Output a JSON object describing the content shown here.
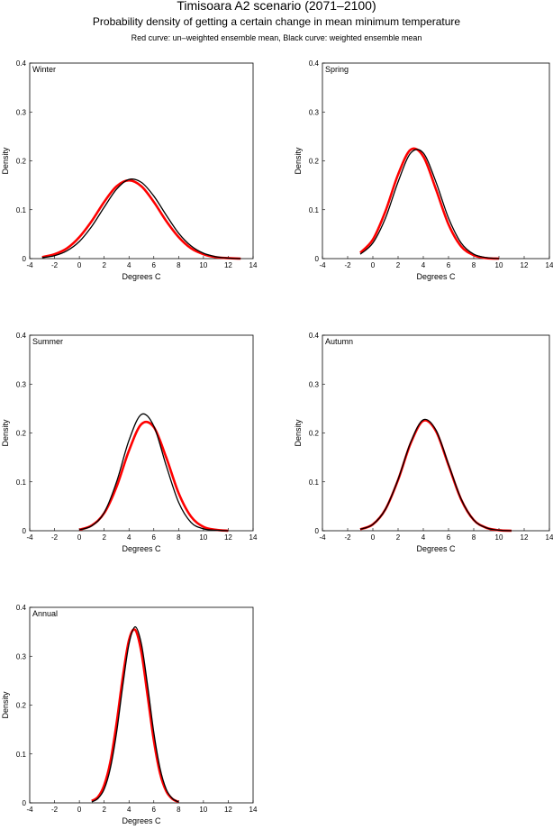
{
  "figure": {
    "title": "Timisoara A2 scenario (2071–2100)",
    "subtitle": "Probability density of getting a certain change in mean minimum temperature",
    "note": "Red curve: un–weighted ensemble mean, Black curve: weighted ensemble mean"
  },
  "chart_data": [
    {
      "type": "line",
      "title": "Winter",
      "x_label": "Degrees C",
      "y_label": "Density",
      "xlim": [
        -4,
        14
      ],
      "xticks": [
        -4,
        -2,
        0,
        2,
        4,
        6,
        8,
        10,
        12,
        14
      ],
      "ylim": [
        0,
        0.4
      ],
      "yticks": [
        0,
        0.1,
        0.2,
        0.3,
        0.4
      ],
      "x": [
        -3,
        -2,
        -1,
        0,
        1,
        2,
        3,
        4,
        5,
        6,
        7,
        8,
        9,
        10,
        11,
        12,
        13
      ],
      "series": [
        {
          "color": "#ff0000",
          "values": [
            0.003,
            0.009,
            0.021,
            0.044,
            0.077,
            0.116,
            0.148,
            0.16,
            0.148,
            0.116,
            0.077,
            0.044,
            0.021,
            0.009,
            0.003,
            0.001,
            0
          ]
        },
        {
          "color": "#000000",
          "values": [
            0.002,
            0.006,
            0.016,
            0.035,
            0.066,
            0.105,
            0.142,
            0.162,
            0.156,
            0.128,
            0.089,
            0.052,
            0.026,
            0.011,
            0.004,
            0.001,
            0
          ]
        }
      ]
    },
    {
      "type": "line",
      "title": "Spring",
      "x_label": "Degrees C",
      "y_label": "Density",
      "xlim": [
        -4,
        14
      ],
      "xticks": [
        -4,
        -2,
        0,
        2,
        4,
        6,
        8,
        10,
        12,
        14
      ],
      "ylim": [
        0,
        0.4
      ],
      "yticks": [
        0,
        0.1,
        0.2,
        0.3,
        0.4
      ],
      "x": [
        -1,
        0,
        1,
        2,
        3,
        4,
        5,
        6,
        7,
        8,
        9,
        10
      ],
      "series": [
        {
          "color": "#ff0000",
          "values": [
            0.012,
            0.039,
            0.097,
            0.172,
            0.223,
            0.209,
            0.142,
            0.07,
            0.025,
            0.007,
            0.001,
            0
          ]
        },
        {
          "color": "#000000",
          "values": [
            0.009,
            0.032,
            0.083,
            0.157,
            0.216,
            0.216,
            0.157,
            0.083,
            0.032,
            0.009,
            0.002,
            0
          ]
        }
      ]
    },
    {
      "type": "line",
      "title": "Summer",
      "x_label": "Degrees C",
      "y_label": "Density",
      "xlim": [
        -4,
        14
      ],
      "xticks": [
        -4,
        -2,
        0,
        2,
        4,
        6,
        8,
        10,
        12,
        14
      ],
      "ylim": [
        0,
        0.4
      ],
      "yticks": [
        0,
        0.1,
        0.2,
        0.3,
        0.4
      ],
      "x": [
        0,
        1,
        2,
        3,
        4,
        5,
        6,
        7,
        8,
        9,
        10,
        11,
        12
      ],
      "series": [
        {
          "color": "#ff0000",
          "values": [
            0.002,
            0.011,
            0.036,
            0.09,
            0.164,
            0.218,
            0.212,
            0.15,
            0.077,
            0.029,
            0.008,
            0.002,
            0
          ]
        },
        {
          "color": "#000000",
          "values": [
            0.002,
            0.01,
            0.037,
            0.1,
            0.185,
            0.238,
            0.214,
            0.133,
            0.058,
            0.017,
            0.004,
            0.001,
            0
          ]
        }
      ]
    },
    {
      "type": "line",
      "title": "Autumn",
      "x_label": "Degrees C",
      "y_label": "Density",
      "xlim": [
        -4,
        14
      ],
      "xticks": [
        -4,
        -2,
        0,
        2,
        4,
        6,
        8,
        10,
        12,
        14
      ],
      "ylim": [
        0,
        0.4
      ],
      "yticks": [
        0,
        0.1,
        0.2,
        0.3,
        0.4
      ],
      "x": [
        -1,
        0,
        1,
        2,
        3,
        4,
        5,
        6,
        7,
        8,
        9,
        10,
        11
      ],
      "series": [
        {
          "color": "#ff0000",
          "values": [
            0.003,
            0.013,
            0.044,
            0.104,
            0.179,
            0.225,
            0.204,
            0.134,
            0.064,
            0.022,
            0.006,
            0.001,
            0
          ]
        },
        {
          "color": "#000000",
          "values": [
            0.003,
            0.013,
            0.044,
            0.105,
            0.181,
            0.227,
            0.206,
            0.136,
            0.065,
            0.022,
            0.006,
            0.001,
            0
          ]
        }
      ]
    },
    {
      "type": "line",
      "title": "Annual",
      "x_label": "Degrees C",
      "y_label": "Density",
      "xlim": [
        -4,
        14
      ],
      "xticks": [
        -4,
        -2,
        0,
        2,
        4,
        6,
        8,
        10,
        12,
        14
      ],
      "ylim": [
        0,
        0.4
      ],
      "yticks": [
        0,
        0.1,
        0.2,
        0.3,
        0.4
      ],
      "x": [
        1,
        1.5,
        2,
        2.5,
        3,
        3.5,
        4,
        4.5,
        5,
        5.5,
        6,
        6.5,
        7,
        7.5,
        8
      ],
      "series": [
        {
          "color": "#ff0000",
          "values": [
            0.004,
            0.012,
            0.036,
            0.084,
            0.163,
            0.257,
            0.333,
            0.354,
            0.308,
            0.219,
            0.128,
            0.061,
            0.024,
            0.008,
            0.002
          ]
        },
        {
          "color": "#000000",
          "values": [
            0.002,
            0.009,
            0.028,
            0.071,
            0.144,
            0.24,
            0.325,
            0.36,
            0.325,
            0.24,
            0.144,
            0.071,
            0.028,
            0.009,
            0.002
          ]
        }
      ]
    }
  ]
}
